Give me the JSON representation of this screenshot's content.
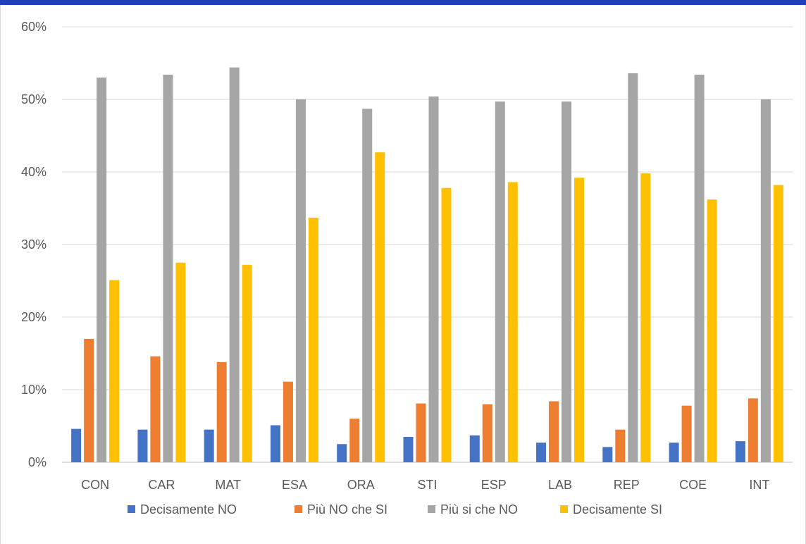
{
  "colors": {
    "frame_top": "#1f3fbf",
    "grid": "#d9d9d9",
    "axis": "#bfbfbf",
    "text": "#595959"
  },
  "chart_data": {
    "type": "bar",
    "title": "",
    "xlabel": "",
    "ylabel": "",
    "ylim": [
      0,
      60
    ],
    "y_ticks": [
      "0%",
      "10%",
      "20%",
      "30%",
      "40%",
      "50%",
      "60%"
    ],
    "grid": true,
    "legend_position": "bottom",
    "categories": [
      "CON",
      "CAR",
      "MAT",
      "ESA",
      "ORA",
      "STI",
      "ESP",
      "LAB",
      "REP",
      "COE",
      "INT"
    ],
    "series": [
      {
        "name": "Decisamente NO",
        "color": "#4472c4",
        "values": [
          4.6,
          4.5,
          4.5,
          5.1,
          2.5,
          3.5,
          3.7,
          2.7,
          2.1,
          2.7,
          2.9
        ]
      },
      {
        "name": "Più NO che SI",
        "color": "#ed7d31",
        "values": [
          17.0,
          14.6,
          13.8,
          11.1,
          6.0,
          8.1,
          8.0,
          8.4,
          4.5,
          7.8,
          8.8
        ]
      },
      {
        "name": "Più si che NO",
        "color": "#a5a5a5",
        "values": [
          53.0,
          53.4,
          54.4,
          50.0,
          48.7,
          50.4,
          49.7,
          49.7,
          53.6,
          53.4,
          50.0
        ]
      },
      {
        "name": "Decisamente SI",
        "color": "#ffc000",
        "values": [
          25.1,
          27.5,
          27.2,
          33.7,
          42.7,
          37.8,
          38.6,
          39.2,
          39.8,
          36.2,
          38.2
        ]
      }
    ]
  }
}
